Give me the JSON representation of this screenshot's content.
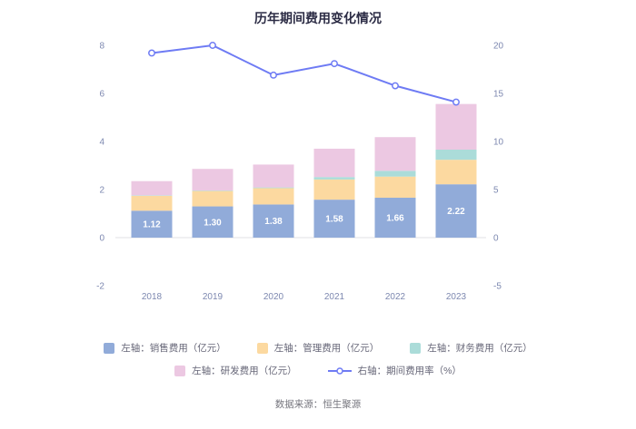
{
  "footer": {
    "source": "数据来源：恒生聚源"
  },
  "chart_data": {
    "type": "bar",
    "subtype": "stacked-bar-with-line",
    "title": "历年期间费用变化情况",
    "categories": [
      "2018",
      "2019",
      "2020",
      "2021",
      "2022",
      "2023"
    ],
    "left_axis": {
      "ticks": [
        -2,
        0,
        2,
        4,
        6,
        8
      ],
      "range": [
        -2,
        8
      ]
    },
    "right_axis": {
      "ticks": [
        -5,
        0,
        5,
        10,
        15,
        20
      ],
      "range": [
        -5,
        20
      ]
    },
    "axis_color": "#7d88b0",
    "grid": "zero-line-only",
    "legend_position": "bottom",
    "series": [
      {
        "key": "sales",
        "name": "左轴：销售费用（亿元）",
        "type": "bar",
        "axis": "left",
        "color": "#91abd9",
        "values": [
          1.12,
          1.3,
          1.38,
          1.58,
          1.66,
          2.22
        ],
        "labels": [
          "1.12",
          "1.30",
          "1.38",
          "1.58",
          "1.66",
          "2.22"
        ]
      },
      {
        "key": "management",
        "name": "左轴：管理费用（亿元）",
        "type": "bar",
        "axis": "left",
        "color": "#fcd9a0",
        "values": [
          0.62,
          0.64,
          0.68,
          0.84,
          0.88,
          1.02
        ]
      },
      {
        "key": "finance",
        "name": "左轴：财务费用（亿元）",
        "type": "bar",
        "axis": "left",
        "color": "#abdcd9",
        "values": [
          0.02,
          0.02,
          0.03,
          0.1,
          0.24,
          0.42
        ]
      },
      {
        "key": "rnd",
        "name": "左轴：研发费用（亿元）",
        "type": "bar",
        "axis": "left",
        "color": "#ecc8e2",
        "values": [
          0.59,
          0.9,
          0.95,
          1.18,
          1.4,
          1.9
        ]
      },
      {
        "key": "rate",
        "name": "右轴：期间费用率（%）",
        "type": "line",
        "axis": "right",
        "color": "#6e7bf4",
        "values": [
          19.2,
          20.0,
          16.9,
          18.1,
          15.8,
          14.1
        ]
      }
    ],
    "legend_rows": [
      [
        0,
        1,
        2
      ],
      [
        3,
        4
      ]
    ]
  }
}
